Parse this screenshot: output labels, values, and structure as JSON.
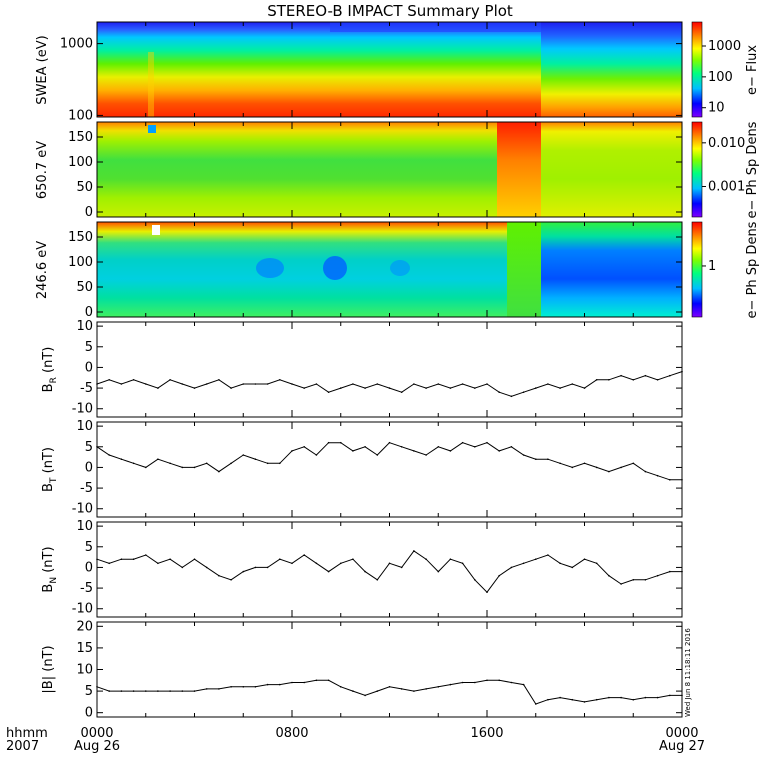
{
  "title": "STEREO-B IMPACT Summary Plot",
  "x_axis": {
    "ticks": [
      "0000",
      "0800",
      "1600",
      "0000"
    ],
    "tick_hours": [
      0,
      8,
      16,
      24
    ],
    "dates": [
      "Aug 26",
      "",
      "",
      "Aug 27"
    ],
    "row_label_format": "hhmm",
    "row_label_year": "2007"
  },
  "timestamp": "Wed Jun  8 11:18:11 2016",
  "spectrograms": [
    {
      "ylabel": "SWEA (eV)",
      "yscale": "log",
      "ylim": [
        95,
        2000
      ],
      "yticks": [
        "1000",
        "100"
      ],
      "ytick_values": [
        1000,
        100
      ],
      "colorbar_label": "e− Flux",
      "colorbar_ticks": [
        "1000",
        "100",
        "10"
      ],
      "colorbar_scale": "log",
      "colorbar_range": [
        5,
        6000
      ]
    },
    {
      "ylabel": "650.7 eV",
      "yscale": "linear",
      "ylim": [
        -10,
        180
      ],
      "yticks": [
        "150",
        "100",
        "50",
        "0"
      ],
      "ytick_values": [
        150,
        100,
        50,
        0
      ],
      "colorbar_label": "e− Ph Sp Dens",
      "colorbar_ticks": [
        "0.010",
        "0.001"
      ],
      "colorbar_scale": "log",
      "colorbar_range": [
        0.0002,
        0.03
      ]
    },
    {
      "ylabel": "246.6 eV",
      "yscale": "linear",
      "ylim": [
        -10,
        180
      ],
      "yticks": [
        "150",
        "100",
        "50",
        "0"
      ],
      "ytick_values": [
        150,
        100,
        50,
        0
      ],
      "colorbar_label": "e− Ph Sp Dens",
      "colorbar_ticks": [
        "1"
      ],
      "colorbar_scale": "log",
      "colorbar_range": [
        0.2,
        4
      ]
    }
  ],
  "chart_data": {
    "type": "line",
    "x_unit": "hours since 0000 Aug 26",
    "x": [
      0,
      0.5,
      1,
      1.5,
      2,
      2.5,
      3,
      3.5,
      4,
      4.5,
      5,
      5.5,
      6,
      6.5,
      7,
      7.5,
      8,
      8.5,
      9,
      9.5,
      10,
      10.5,
      11,
      11.5,
      12,
      12.5,
      13,
      13.5,
      14,
      14.5,
      15,
      15.5,
      16,
      16.5,
      17,
      17.5,
      18,
      18.5,
      19,
      19.5,
      20,
      20.5,
      21,
      21.5,
      22,
      22.5,
      23,
      23.5,
      24
    ],
    "panels": [
      {
        "ylabel": "B_R (nT)",
        "ylabel_main": "B",
        "ylabel_sub": "R",
        "ylabel_unit": "(nT)",
        "ylim": [
          -12,
          11
        ],
        "yticks": [
          10,
          5,
          0,
          -5,
          -10
        ],
        "values": [
          -4,
          -3,
          -4,
          -3,
          -4,
          -5,
          -3,
          -4,
          -5,
          -4,
          -3,
          -5,
          -4,
          -4,
          -4,
          -3,
          -4,
          -5,
          -4,
          -6,
          -5,
          -4,
          -5,
          -4,
          -5,
          -6,
          -4,
          -5,
          -4,
          -5,
          -4,
          -5,
          -4,
          -6,
          -7,
          -6,
          -5,
          -4,
          -5,
          -4,
          -5,
          -3,
          -3,
          -2,
          -3,
          -2,
          -3,
          -2,
          -1
        ]
      },
      {
        "ylabel": "B_T (nT)",
        "ylabel_main": "B",
        "ylabel_sub": "T",
        "ylabel_unit": "(nT)",
        "ylim": [
          -12,
          11
        ],
        "yticks": [
          10,
          5,
          0,
          -5,
          -10
        ],
        "values": [
          5,
          3,
          2,
          1,
          0,
          2,
          1,
          0,
          0,
          1,
          -1,
          1,
          3,
          2,
          1,
          1,
          4,
          5,
          3,
          6,
          6,
          4,
          5,
          3,
          6,
          5,
          4,
          3,
          5,
          4,
          6,
          5,
          6,
          4,
          5,
          3,
          2,
          2,
          1,
          0,
          1,
          0,
          -1,
          0,
          1,
          -1,
          -2,
          -3,
          -3
        ]
      },
      {
        "ylabel": "B_N (nT)",
        "ylabel_main": "B",
        "ylabel_sub": "N",
        "ylabel_unit": "(nT)",
        "ylim": [
          -12,
          11
        ],
        "yticks": [
          10,
          5,
          0,
          -5,
          -10
        ],
        "values": [
          2,
          1,
          2,
          2,
          3,
          1,
          2,
          0,
          2,
          0,
          -2,
          -3,
          -1,
          0,
          0,
          2,
          1,
          3,
          1,
          -1,
          1,
          2,
          -1,
          -3,
          1,
          0,
          4,
          2,
          -1,
          2,
          1,
          -3,
          -6,
          -2,
          0,
          1,
          2,
          3,
          1,
          0,
          2,
          1,
          -2,
          -4,
          -3,
          -3,
          -2,
          -1,
          -1
        ]
      },
      {
        "ylabel": "|B| (nT)",
        "ylabel_main": "|B|",
        "ylabel_sub": "",
        "ylabel_unit": "(nT)",
        "ylim": [
          -1,
          21
        ],
        "yticks": [
          20,
          15,
          10,
          5,
          0
        ],
        "values": [
          6,
          5,
          5,
          5,
          5,
          5,
          5,
          5,
          5,
          5.5,
          5.5,
          6,
          6,
          6,
          6.5,
          6.5,
          7,
          7,
          7.5,
          7.5,
          6,
          5,
          4,
          5,
          6,
          5.5,
          5,
          5.5,
          6,
          6.5,
          7,
          7,
          7.5,
          7.5,
          7,
          6.5,
          2,
          3,
          3.5,
          3,
          2.5,
          3,
          3.5,
          3.5,
          3,
          3.5,
          3.5,
          4,
          4
        ]
      }
    ]
  }
}
